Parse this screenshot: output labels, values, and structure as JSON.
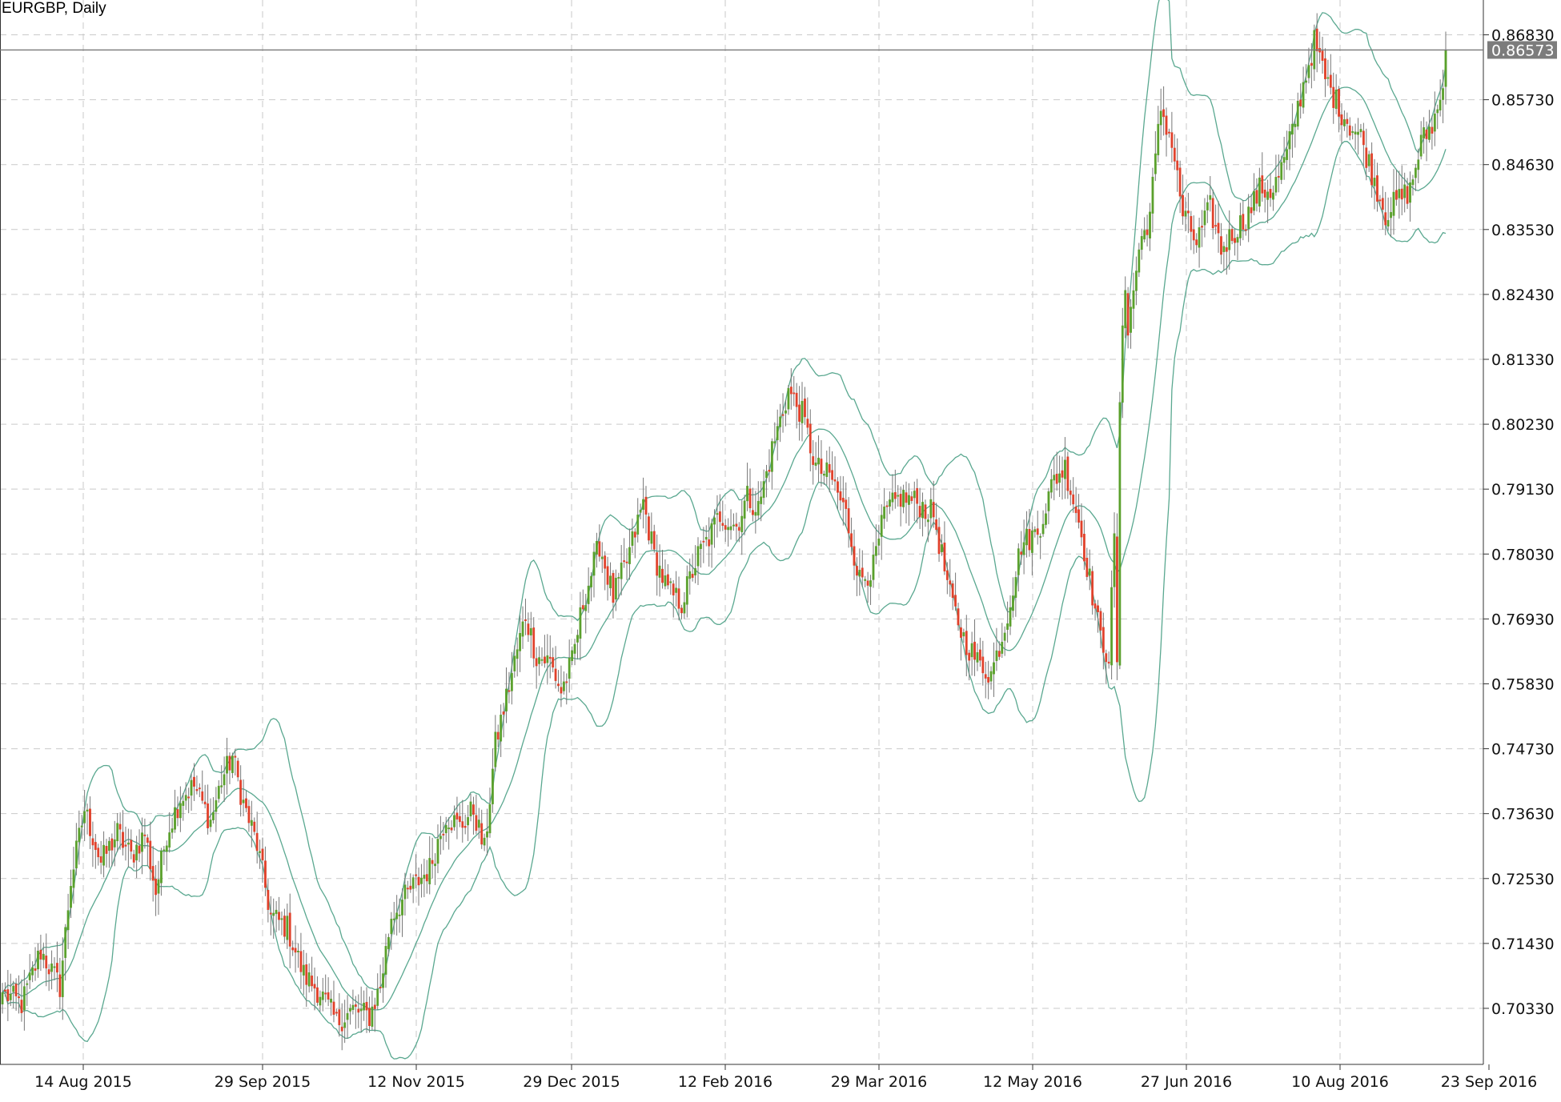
{
  "chart_data": {
    "type": "candlestick",
    "title": "EURGBP, Daily",
    "ylim": [
      0.6938,
      0.8742
    ],
    "y_ticks": [
      "0.86830",
      "0.85730",
      "0.84630",
      "0.83530",
      "0.82430",
      "0.81330",
      "0.80230",
      "0.79130",
      "0.78030",
      "0.76930",
      "0.75830",
      "0.74730",
      "0.73630",
      "0.72530",
      "0.71430",
      "0.70330"
    ],
    "x_ticks": [
      "14 Aug 2015",
      "29 Sep 2015",
      "12 Nov 2015",
      "29 Dec 2015",
      "12 Feb 2016",
      "29 Mar 2016",
      "12 May 2016",
      "27 Jun 2016",
      "10 Aug 2016",
      "23 Sep 2016"
    ],
    "current_price": "0.86573",
    "candle_up_color": "#5aa02c",
    "candle_down_color": "#e0402a",
    "band_color": "#5aa890",
    "anchor_closes": [
      [
        0,
        0.706
      ],
      [
        7,
        0.704
      ],
      [
        14,
        0.713
      ],
      [
        21,
        0.707
      ],
      [
        25,
        0.725
      ],
      [
        30,
        0.737
      ],
      [
        36,
        0.728
      ],
      [
        42,
        0.733
      ],
      [
        47,
        0.729
      ],
      [
        52,
        0.733
      ],
      [
        56,
        0.723
      ],
      [
        60,
        0.733
      ],
      [
        65,
        0.739
      ],
      [
        70,
        0.741
      ],
      [
        76,
        0.735
      ],
      [
        80,
        0.742
      ],
      [
        84,
        0.746
      ],
      [
        88,
        0.738
      ],
      [
        93,
        0.731
      ],
      [
        98,
        0.719
      ],
      [
        104,
        0.717
      ],
      [
        110,
        0.709
      ],
      [
        116,
        0.706
      ],
      [
        122,
        0.701
      ],
      [
        128,
        0.703
      ],
      [
        134,
        0.702
      ],
      [
        138,
        0.707
      ],
      [
        142,
        0.719
      ],
      [
        150,
        0.724
      ],
      [
        156,
        0.727
      ],
      [
        162,
        0.736
      ],
      [
        167,
        0.734
      ],
      [
        172,
        0.737
      ],
      [
        176,
        0.73
      ],
      [
        180,
        0.748
      ],
      [
        186,
        0.76
      ],
      [
        191,
        0.77
      ],
      [
        195,
        0.763
      ],
      [
        200,
        0.762
      ],
      [
        204,
        0.757
      ],
      [
        208,
        0.762
      ],
      [
        212,
        0.772
      ],
      [
        218,
        0.782
      ],
      [
        223,
        0.773
      ],
      [
        228,
        0.779
      ],
      [
        234,
        0.789
      ],
      [
        238,
        0.78
      ],
      [
        243,
        0.774
      ],
      [
        248,
        0.772
      ],
      [
        254,
        0.78
      ],
      [
        258,
        0.783
      ],
      [
        262,
        0.787
      ],
      [
        268,
        0.785
      ],
      [
        272,
        0.79
      ],
      [
        276,
        0.788
      ],
      [
        281,
        0.798
      ],
      [
        287,
        0.808
      ],
      [
        292,
        0.804
      ],
      [
        297,
        0.795
      ],
      [
        303,
        0.793
      ],
      [
        308,
        0.787
      ],
      [
        313,
        0.776
      ],
      [
        318,
        0.778
      ],
      [
        322,
        0.787
      ],
      [
        328,
        0.79
      ],
      [
        334,
        0.789
      ],
      [
        340,
        0.787
      ],
      [
        346,
        0.773
      ],
      [
        351,
        0.766
      ],
      [
        356,
        0.762
      ],
      [
        361,
        0.76
      ],
      [
        366,
        0.768
      ],
      [
        372,
        0.782
      ],
      [
        378,
        0.784
      ],
      [
        384,
        0.793
      ],
      [
        388,
        0.795
      ],
      [
        393,
        0.786
      ],
      [
        397,
        0.776
      ],
      [
        401,
        0.766
      ],
      [
        404,
        0.763
      ],
      [
        408,
        0.802
      ],
      [
        411,
        0.818
      ],
      [
        415,
        0.832
      ],
      [
        419,
        0.838
      ],
      [
        423,
        0.856
      ],
      [
        427,
        0.85
      ],
      [
        431,
        0.838
      ],
      [
        436,
        0.833
      ],
      [
        441,
        0.839
      ],
      [
        445,
        0.832
      ],
      [
        450,
        0.835
      ],
      [
        455,
        0.838
      ],
      [
        459,
        0.842
      ],
      [
        464,
        0.842
      ],
      [
        469,
        0.848
      ],
      [
        474,
        0.858
      ],
      [
        479,
        0.867
      ],
      [
        483,
        0.861
      ],
      [
        488,
        0.856
      ],
      [
        492,
        0.853
      ],
      [
        496,
        0.851
      ],
      [
        500,
        0.845
      ],
      [
        505,
        0.838
      ],
      [
        509,
        0.84
      ],
      [
        514,
        0.842
      ],
      [
        518,
        0.85
      ],
      [
        522,
        0.853
      ],
      [
        525,
        0.857
      ],
      [
        527,
        0.8657
      ]
    ]
  }
}
